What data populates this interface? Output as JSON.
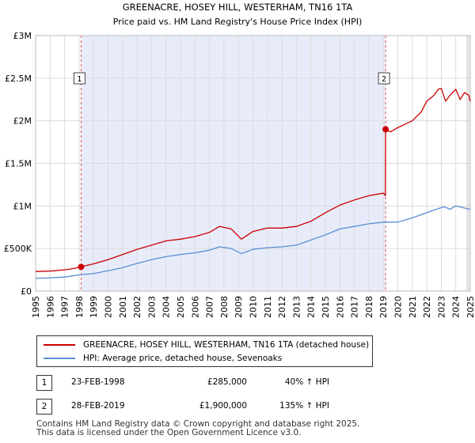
{
  "chart_data": {
    "type": "line",
    "title": "GREENACRE, HOSEY HILL, WESTERHAM, TN16 1TA",
    "subtitle": "Price paid vs. HM Land Registry's House Price Index (HPI)",
    "xlabel": "",
    "ylabel": "",
    "xlim": [
      1995,
      2025
    ],
    "ylim": [
      0,
      3000000
    ],
    "y_ticks": [
      {
        "value": 0,
        "label": "£0"
      },
      {
        "value": 500000,
        "label": "£500K"
      },
      {
        "value": 1000000,
        "label": "£1M"
      },
      {
        "value": 1500000,
        "label": "£1.5M"
      },
      {
        "value": 2000000,
        "label": "£2M"
      },
      {
        "value": 2500000,
        "label": "£2.5M"
      },
      {
        "value": 3000000,
        "label": "£3M"
      }
    ],
    "x_ticks": [
      "1995",
      "1996",
      "1997",
      "1998",
      "1999",
      "2000",
      "2001",
      "2002",
      "2003",
      "2004",
      "2005",
      "2006",
      "2007",
      "2008",
      "2009",
      "2010",
      "2011",
      "2012",
      "2013",
      "2014",
      "2015",
      "2016",
      "2017",
      "2018",
      "2019",
      "2020",
      "2021",
      "2022",
      "2023",
      "2024",
      "2025"
    ],
    "grid": true,
    "shaded_period": [
      1998.14,
      2019.16
    ],
    "series": [
      {
        "name": "GREENACRE, HOSEY HILL, WESTERHAM, TN16 1TA (detached house)",
        "color": "#cc0000",
        "x": [
          1995.0,
          1996.0,
          1997.0,
          1997.6,
          1998.14,
          1999.0,
          2000.0,
          2001.0,
          2002.0,
          2003.0,
          2004.0,
          2005.0,
          2006.0,
          2007.0,
          2007.7,
          2008.5,
          2009.2,
          2010.0,
          2011.0,
          2012.0,
          2013.0,
          2014.0,
          2015.0,
          2016.0,
          2017.0,
          2018.0,
          2019.0,
          2019.14,
          2019.16,
          2019.5,
          2020.0,
          2021.0,
          2021.6,
          2022.0,
          2022.5,
          2022.8,
          2023.0,
          2023.3,
          2023.6,
          2024.0,
          2024.3,
          2024.6,
          2024.9,
          2025.0
        ],
        "y": [
          230000,
          235000,
          250000,
          265000,
          285000,
          320000,
          370000,
          430000,
          490000,
          540000,
          590000,
          610000,
          640000,
          690000,
          760000,
          730000,
          610000,
          700000,
          740000,
          740000,
          760000,
          820000,
          920000,
          1010000,
          1070000,
          1120000,
          1150000,
          1120000,
          1900000,
          1870000,
          1920000,
          2000000,
          2100000,
          2230000,
          2300000,
          2370000,
          2380000,
          2230000,
          2300000,
          2370000,
          2250000,
          2330000,
          2300000,
          2230000
        ]
      },
      {
        "name": "HPI: Average price, detached house, Sevenoaks",
        "color": "#5b8fd4",
        "x": [
          1995.0,
          1996.0,
          1997.0,
          1998.0,
          1999.0,
          2000.0,
          2001.0,
          2002.0,
          2003.0,
          2004.0,
          2005.0,
          2006.0,
          2007.0,
          2007.7,
          2008.5,
          2009.2,
          2010.0,
          2011.0,
          2012.0,
          2013.0,
          2014.0,
          2015.0,
          2016.0,
          2017.0,
          2018.0,
          2019.0,
          2020.0,
          2021.0,
          2022.0,
          2022.8,
          2023.2,
          2023.6,
          2024.0,
          2024.5,
          2025.0
        ],
        "y": [
          150000,
          155000,
          165000,
          190000,
          205000,
          240000,
          275000,
          325000,
          370000,
          405000,
          430000,
          450000,
          480000,
          520000,
          500000,
          440000,
          490000,
          510000,
          520000,
          540000,
          600000,
          660000,
          730000,
          760000,
          790000,
          810000,
          810000,
          860000,
          920000,
          970000,
          990000,
          960000,
          1000000,
          980000,
          960000
        ]
      }
    ],
    "annotations": [
      {
        "label": "1",
        "x": 1998.14,
        "y": 285000
      },
      {
        "label": "2",
        "x": 2019.16,
        "y": 1900000
      }
    ]
  },
  "legend": {
    "property_label": "GREENACRE, HOSEY HILL, WESTERHAM, TN16 1TA (detached house)",
    "hpi_label": "HPI: Average price, detached house, Sevenoaks"
  },
  "sales": [
    {
      "num": "1",
      "date": "23-FEB-1998",
      "price": "£285,000",
      "hpi": "40% ↑ HPI"
    },
    {
      "num": "2",
      "date": "28-FEB-2019",
      "price": "£1,900,000",
      "hpi": "135% ↑ HPI"
    }
  ],
  "footer": {
    "line1": "Contains HM Land Registry data © Crown copyright and database right 2025.",
    "line2": "This data is licensed under the Open Government Licence v3.0."
  }
}
